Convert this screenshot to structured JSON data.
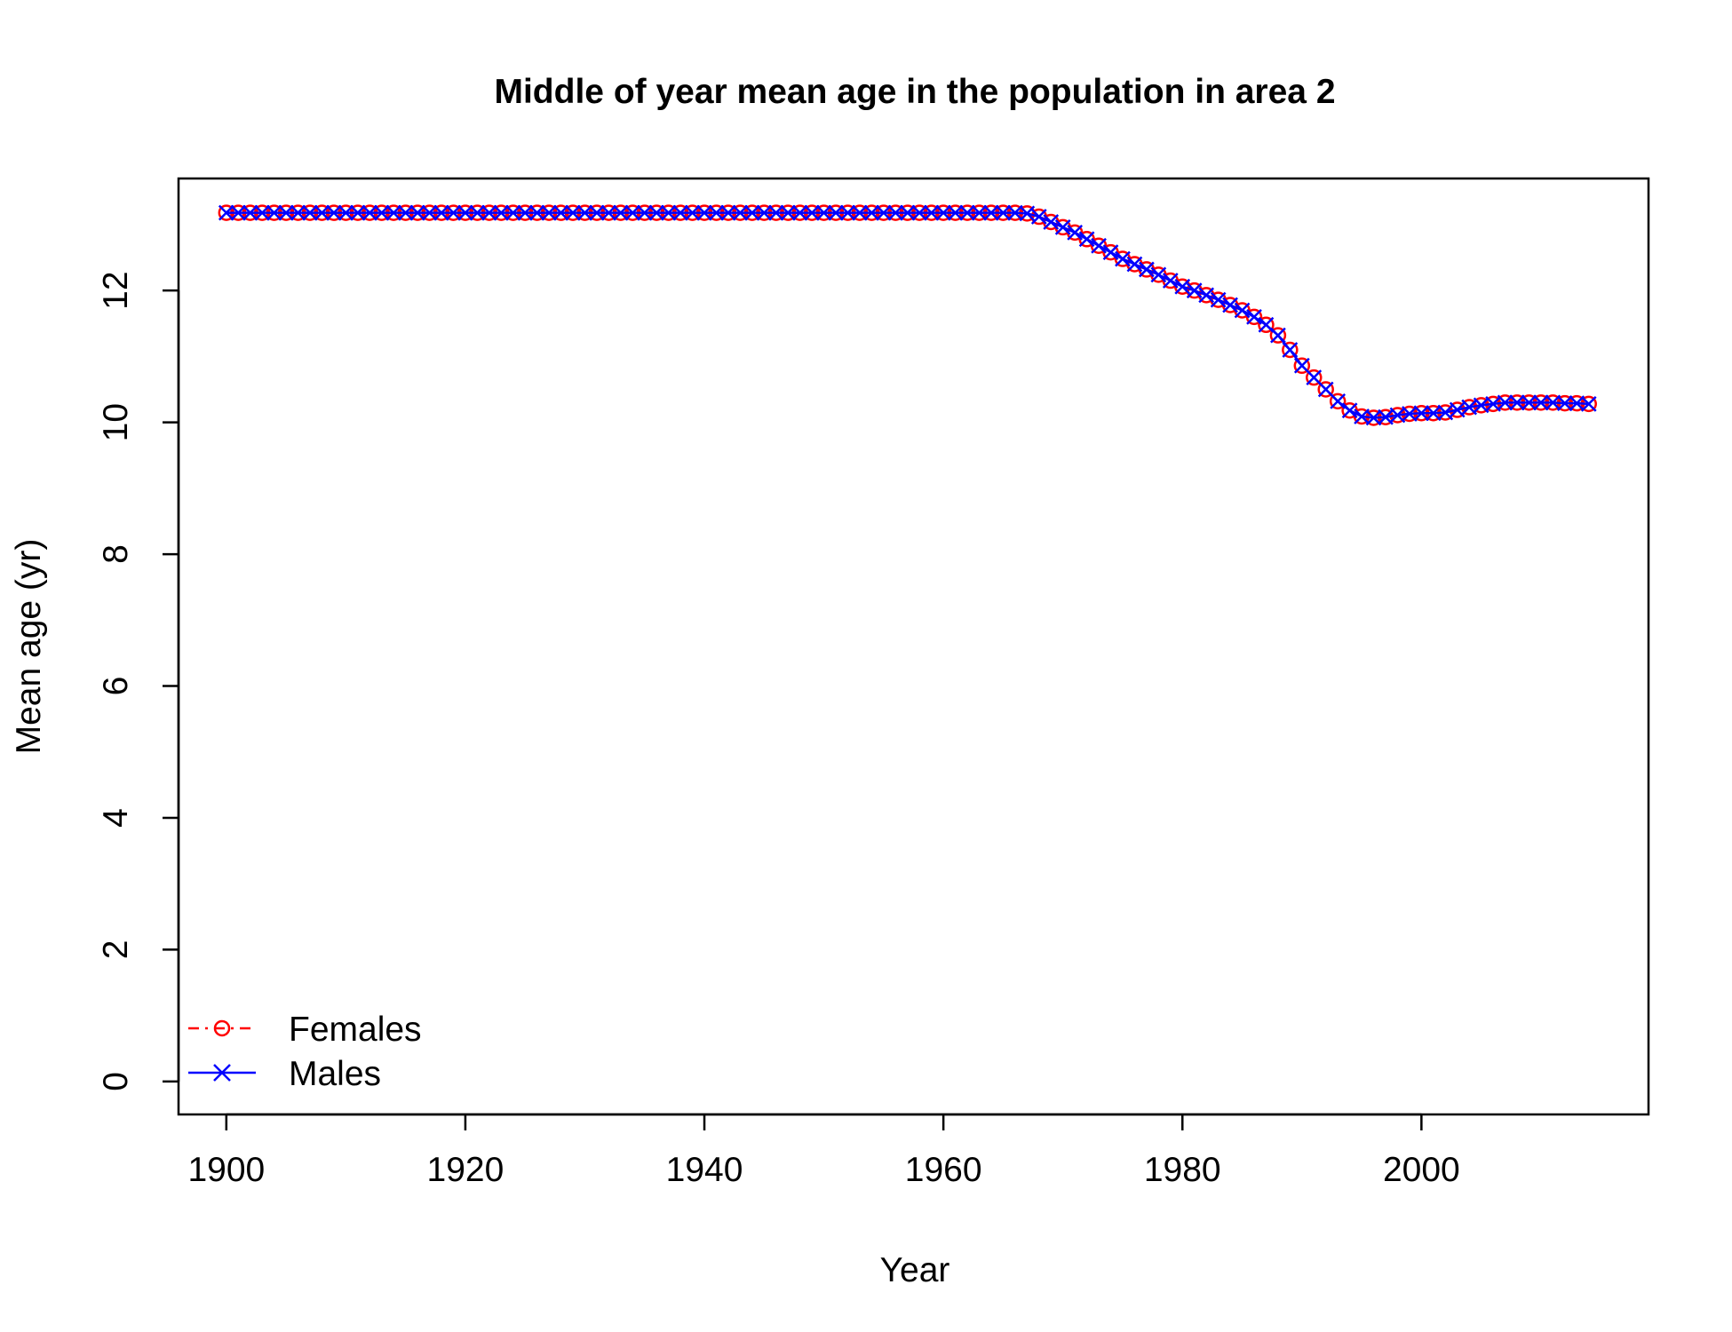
{
  "chart_data": {
    "type": "line",
    "title": "Middle of year mean age in the population in area 2",
    "xlabel": "Year",
    "ylabel": "Mean age (yr)",
    "xlim": [
      1896,
      2019
    ],
    "ylim": [
      -0.5,
      13.7
    ],
    "x_ticks": [
      1900,
      1920,
      1940,
      1960,
      1980,
      2000
    ],
    "y_ticks": [
      0,
      2,
      4,
      6,
      8,
      10,
      12
    ],
    "legend_position": "bottom-left",
    "colors": {
      "Females": "#ff0000",
      "Males": "#0000ff"
    },
    "x": [
      1900,
      1901,
      1902,
      1903,
      1904,
      1905,
      1906,
      1907,
      1908,
      1909,
      1910,
      1911,
      1912,
      1913,
      1914,
      1915,
      1916,
      1917,
      1918,
      1919,
      1920,
      1921,
      1922,
      1923,
      1924,
      1925,
      1926,
      1927,
      1928,
      1929,
      1930,
      1931,
      1932,
      1933,
      1934,
      1935,
      1936,
      1937,
      1938,
      1939,
      1940,
      1941,
      1942,
      1943,
      1944,
      1945,
      1946,
      1947,
      1948,
      1949,
      1950,
      1951,
      1952,
      1953,
      1954,
      1955,
      1956,
      1957,
      1958,
      1959,
      1960,
      1961,
      1962,
      1963,
      1964,
      1965,
      1966,
      1967,
      1968,
      1969,
      1970,
      1971,
      1972,
      1973,
      1974,
      1975,
      1976,
      1977,
      1978,
      1979,
      1980,
      1981,
      1982,
      1983,
      1984,
      1985,
      1986,
      1987,
      1988,
      1989,
      1990,
      1991,
      1992,
      1993,
      1994,
      1995,
      1996,
      1997,
      1998,
      1999,
      2000,
      2001,
      2002,
      2003,
      2004,
      2005,
      2006,
      2007,
      2008,
      2009,
      2010,
      2011,
      2012,
      2013,
      2014
    ],
    "series": [
      {
        "name": "Females",
        "line_style": "dashed",
        "marker": "circle",
        "values": [
          13.18,
          13.18,
          13.18,
          13.18,
          13.18,
          13.18,
          13.18,
          13.18,
          13.18,
          13.18,
          13.18,
          13.18,
          13.18,
          13.18,
          13.18,
          13.18,
          13.18,
          13.18,
          13.18,
          13.18,
          13.18,
          13.18,
          13.18,
          13.18,
          13.18,
          13.18,
          13.18,
          13.18,
          13.18,
          13.18,
          13.18,
          13.18,
          13.18,
          13.18,
          13.18,
          13.18,
          13.18,
          13.18,
          13.18,
          13.18,
          13.18,
          13.18,
          13.18,
          13.18,
          13.18,
          13.18,
          13.18,
          13.18,
          13.18,
          13.18,
          13.18,
          13.18,
          13.18,
          13.18,
          13.18,
          13.18,
          13.18,
          13.18,
          13.18,
          13.18,
          13.18,
          13.18,
          13.18,
          13.18,
          13.18,
          13.18,
          13.18,
          13.17,
          13.12,
          13.04,
          12.96,
          12.88,
          12.78,
          12.68,
          12.58,
          12.48,
          12.4,
          12.32,
          12.24,
          12.15,
          12.06,
          12.0,
          11.93,
          11.86,
          11.78,
          11.7,
          11.6,
          11.48,
          11.32,
          11.1,
          10.86,
          10.68,
          10.5,
          10.32,
          10.18,
          10.09,
          10.07,
          10.08,
          10.11,
          10.13,
          10.14,
          10.14,
          10.15,
          10.19,
          10.23,
          10.26,
          10.28,
          10.3,
          10.3,
          10.3,
          10.3,
          10.3,
          10.29,
          10.29,
          10.28
        ]
      },
      {
        "name": "Males",
        "line_style": "solid",
        "marker": "x",
        "values": [
          13.18,
          13.18,
          13.18,
          13.18,
          13.18,
          13.18,
          13.18,
          13.18,
          13.18,
          13.18,
          13.18,
          13.18,
          13.18,
          13.18,
          13.18,
          13.18,
          13.18,
          13.18,
          13.18,
          13.18,
          13.18,
          13.18,
          13.18,
          13.18,
          13.18,
          13.18,
          13.18,
          13.18,
          13.18,
          13.18,
          13.18,
          13.18,
          13.18,
          13.18,
          13.18,
          13.18,
          13.18,
          13.18,
          13.18,
          13.18,
          13.18,
          13.18,
          13.18,
          13.18,
          13.18,
          13.18,
          13.18,
          13.18,
          13.18,
          13.18,
          13.18,
          13.18,
          13.18,
          13.18,
          13.18,
          13.18,
          13.18,
          13.18,
          13.18,
          13.18,
          13.18,
          13.18,
          13.18,
          13.18,
          13.18,
          13.18,
          13.18,
          13.17,
          13.12,
          13.04,
          12.96,
          12.88,
          12.78,
          12.68,
          12.58,
          12.48,
          12.4,
          12.32,
          12.24,
          12.15,
          12.06,
          12.0,
          11.93,
          11.86,
          11.78,
          11.7,
          11.6,
          11.48,
          11.32,
          11.1,
          10.86,
          10.68,
          10.5,
          10.32,
          10.18,
          10.09,
          10.07,
          10.08,
          10.11,
          10.13,
          10.14,
          10.14,
          10.15,
          10.19,
          10.23,
          10.26,
          10.28,
          10.3,
          10.3,
          10.3,
          10.3,
          10.3,
          10.29,
          10.29,
          10.28
        ]
      }
    ]
  }
}
